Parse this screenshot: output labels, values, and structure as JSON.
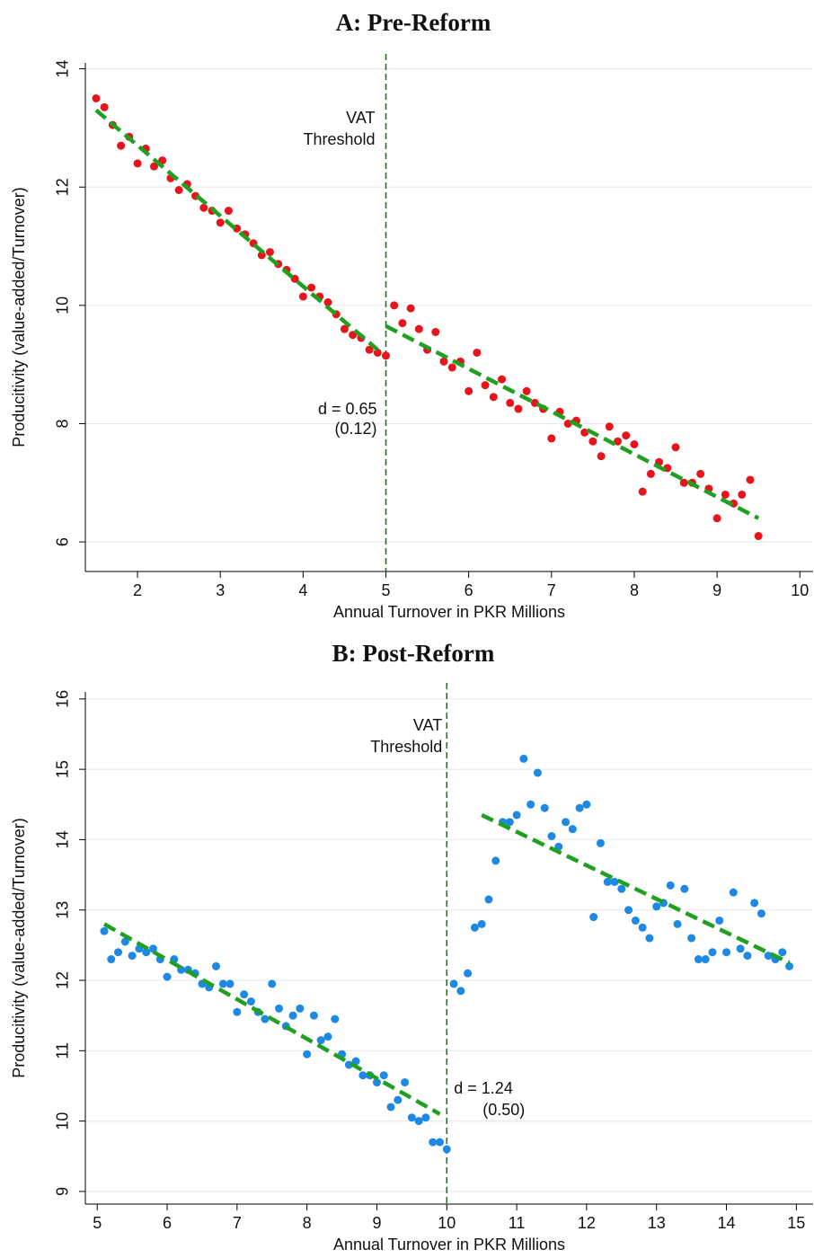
{
  "chart_data": [
    {
      "type": "scatter",
      "title": "A: Pre-Reform",
      "xlabel": "Annual Turnover in PKR Millions",
      "ylabel": "Producitivity (value-added/Turnover)",
      "x": [
        1.5,
        1.6,
        1.7,
        1.8,
        1.9,
        2.0,
        2.1,
        2.2,
        2.3,
        2.4,
        2.5,
        2.6,
        2.7,
        2.8,
        2.9,
        3.0,
        3.1,
        3.2,
        3.3,
        3.4,
        3.5,
        3.6,
        3.7,
        3.8,
        3.9,
        4.0,
        4.1,
        4.2,
        4.3,
        4.4,
        4.5,
        4.6,
        4.7,
        4.8,
        4.9,
        5.0,
        5.1,
        5.2,
        5.3,
        5.4,
        5.5,
        5.6,
        5.7,
        5.8,
        5.9,
        6.0,
        6.1,
        6.2,
        6.3,
        6.4,
        6.5,
        6.6,
        6.7,
        6.8,
        6.9,
        7.0,
        7.1,
        7.2,
        7.3,
        7.4,
        7.5,
        7.6,
        7.7,
        7.8,
        7.9,
        8.0,
        8.1,
        8.2,
        8.3,
        8.4,
        8.5,
        8.6,
        8.7,
        8.8,
        8.9,
        9.0,
        9.1,
        9.2,
        9.3,
        9.4,
        9.5
      ],
      "values": [
        13.5,
        13.35,
        13.05,
        12.7,
        12.85,
        12.4,
        12.65,
        12.35,
        12.45,
        12.15,
        11.95,
        12.05,
        11.85,
        11.65,
        11.6,
        11.4,
        11.6,
        11.3,
        11.2,
        11.05,
        10.85,
        10.9,
        10.7,
        10.6,
        10.45,
        10.15,
        10.3,
        10.15,
        10.05,
        9.85,
        9.6,
        9.5,
        9.45,
        9.25,
        9.2,
        9.15,
        10.0,
        9.7,
        9.95,
        9.6,
        9.25,
        9.55,
        9.05,
        8.95,
        9.05,
        8.55,
        9.2,
        8.65,
        8.45,
        8.75,
        8.35,
        8.25,
        8.55,
        8.35,
        8.25,
        7.75,
        8.2,
        8.0,
        8.05,
        7.85,
        7.7,
        7.45,
        7.95,
        7.7,
        7.8,
        7.65,
        6.85,
        7.15,
        7.35,
        7.25,
        7.6,
        7.0,
        7.0,
        7.15,
        6.9,
        6.4,
        6.8,
        6.65,
        6.8,
        7.05,
        6.1
      ],
      "color": "#e8141b",
      "fit_lines": [
        {
          "x": [
            1.5,
            4.9
          ],
          "values": [
            13.3,
            9.25
          ]
        },
        {
          "x": [
            5.0,
            9.5
          ],
          "values": [
            9.65,
            6.4
          ]
        }
      ],
      "fit_color": "#1fa01f",
      "threshold": 5,
      "threshold_label": [
        "VAT",
        "Threshold"
      ],
      "estimate": "d = 0.65",
      "se": "(0.12)",
      "xlim": [
        1.37,
        10.16
      ],
      "ylim": [
        5.5,
        14.1
      ],
      "xticks": [
        2,
        3,
        4,
        5,
        6,
        7,
        8,
        9,
        10
      ],
      "yticks": [
        6,
        8,
        10,
        12,
        14
      ],
      "grid": true
    },
    {
      "type": "scatter",
      "title": "B: Post-Reform",
      "xlabel": "Annual Turnover in PKR Millions",
      "ylabel": "Producitivity (value-added/Turnover)",
      "x": [
        5.1,
        5.2,
        5.3,
        5.4,
        5.5,
        5.6,
        5.7,
        5.8,
        5.9,
        6.0,
        6.1,
        6.2,
        6.3,
        6.4,
        6.5,
        6.6,
        6.7,
        6.8,
        6.9,
        7.0,
        7.1,
        7.2,
        7.3,
        7.4,
        7.5,
        7.6,
        7.7,
        7.8,
        7.9,
        8.0,
        8.1,
        8.2,
        8.3,
        8.4,
        8.5,
        8.6,
        8.7,
        8.8,
        8.9,
        9.0,
        9.1,
        9.2,
        9.3,
        9.4,
        9.5,
        9.6,
        9.7,
        9.8,
        9.9,
        10.0,
        10.1,
        10.2,
        10.3,
        10.4,
        10.5,
        10.6,
        10.7,
        10.8,
        10.9,
        11.0,
        11.1,
        11.2,
        11.3,
        11.4,
        11.5,
        11.6,
        11.7,
        11.8,
        11.9,
        12.0,
        12.1,
        12.2,
        12.3,
        12.4,
        12.5,
        12.6,
        12.7,
        12.8,
        12.9,
        13.0,
        13.1,
        13.2,
        13.3,
        13.4,
        13.5,
        13.6,
        13.7,
        13.8,
        13.9,
        14.0,
        14.1,
        14.2,
        14.3,
        14.4,
        14.5,
        14.6,
        14.7,
        14.8,
        14.9
      ],
      "values": [
        12.7,
        12.3,
        12.4,
        12.55,
        12.35,
        12.45,
        12.4,
        12.45,
        12.3,
        12.05,
        12.3,
        12.15,
        12.15,
        12.1,
        11.95,
        11.9,
        12.2,
        11.95,
        11.95,
        11.55,
        11.8,
        11.7,
        11.55,
        11.45,
        11.95,
        11.6,
        11.35,
        11.5,
        11.6,
        10.95,
        11.5,
        11.15,
        11.2,
        11.45,
        10.95,
        10.8,
        10.85,
        10.65,
        10.65,
        10.55,
        10.65,
        10.2,
        10.3,
        10.55,
        10.05,
        10.0,
        10.05,
        9.7,
        9.7,
        9.6,
        11.95,
        11.85,
        12.1,
        12.75,
        12.8,
        13.15,
        13.7,
        14.25,
        14.25,
        14.35,
        15.15,
        14.5,
        14.95,
        14.45,
        14.05,
        13.9,
        14.25,
        14.15,
        14.45,
        14.5,
        12.9,
        13.95,
        13.4,
        13.4,
        13.3,
        13.0,
        12.85,
        12.75,
        12.6,
        13.05,
        13.1,
        13.35,
        12.8,
        13.3,
        12.6,
        12.3,
        12.3,
        12.4,
        12.85,
        12.4,
        13.25,
        12.45,
        12.35,
        13.1,
        12.95,
        12.35,
        12.3,
        12.4,
        12.2
      ],
      "color": "#1e88e5",
      "fit_lines": [
        {
          "x": [
            5.1,
            9.9
          ],
          "values": [
            12.8,
            10.1
          ]
        },
        {
          "x": [
            10.5,
            14.9
          ],
          "values": [
            14.35,
            12.25
          ]
        }
      ],
      "fit_color": "#1fa01f",
      "threshold": 10,
      "threshold_label": [
        "VAT",
        "Threshold"
      ],
      "estimate": "d = 1.24",
      "se": "(0.50)",
      "xlim": [
        4.83,
        15.24
      ],
      "ylim": [
        8.82,
        16.1
      ],
      "xticks": [
        5,
        6,
        7,
        8,
        9,
        10,
        11,
        12,
        13,
        14,
        15
      ],
      "yticks": [
        9,
        10,
        11,
        12,
        13,
        14,
        15,
        16
      ],
      "grid": true
    }
  ]
}
